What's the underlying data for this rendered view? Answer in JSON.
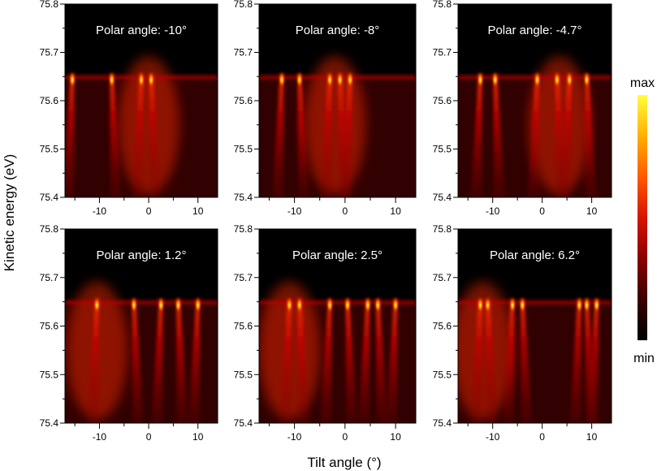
{
  "chart_data": {
    "type": "heatmap",
    "xlabel": "Tilt angle (°)",
    "ylabel": "Kinetic energy (eV)",
    "xlim": [
      -17,
      14
    ],
    "ylim": [
      75.4,
      75.8
    ],
    "x_ticks": [
      "-10",
      "0",
      "10"
    ],
    "x_tick_values": [
      -10,
      0,
      10
    ],
    "y_ticks": [
      "75.4",
      "75.5",
      "75.6",
      "75.7",
      "75.8"
    ],
    "y_tick_values": [
      75.4,
      75.5,
      75.6,
      75.7,
      75.8
    ],
    "fermi_edge_eV": 75.65,
    "colorbar": {
      "max_label": "max",
      "min_label": "min"
    },
    "colormap": [
      "#000000",
      "#3a0000",
      "#8a0000",
      "#d61400",
      "#ff5a00",
      "#ffb000",
      "#ffff40"
    ],
    "panels": [
      {
        "title": "Polar angle: -10°",
        "bands": [
          -15.5,
          -7.5,
          -1.5,
          0.5
        ],
        "hotspot": 0
      },
      {
        "title": "Polar angle: -8°",
        "bands": [
          -12.5,
          -9,
          -3,
          -1,
          1
        ],
        "hotspot": -2
      },
      {
        "title": "Polar angle: -4.7°",
        "bands": [
          -12.5,
          -9.5,
          -1,
          3,
          5.5,
          9
        ],
        "hotspot": 3.5
      },
      {
        "title": "Polar angle: 1.2°",
        "bands": [
          -10.5,
          -3,
          2.5,
          6,
          10
        ],
        "hotspot": -10.5
      },
      {
        "title": "Polar angle: 2.5°",
        "bands": [
          -11,
          -9,
          -3,
          0.5,
          4.5,
          6.5,
          10
        ],
        "hotspot": -11
      },
      {
        "title": "Polar angle: 6.2°",
        "bands": [
          -12.5,
          -11,
          -6,
          -4,
          7.5,
          9,
          11
        ],
        "hotspot": -12
      }
    ]
  }
}
